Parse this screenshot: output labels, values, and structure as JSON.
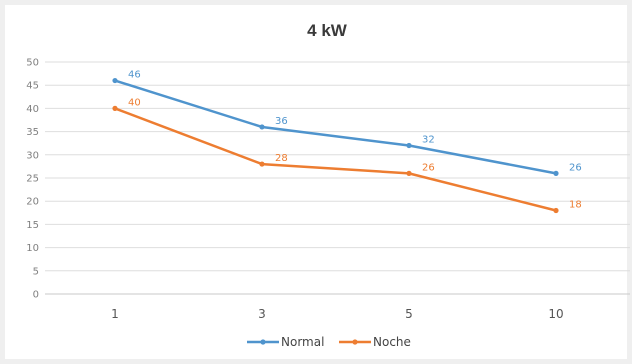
{
  "chart_data": {
    "type": "line",
    "title": "4 kW",
    "xlabel": "",
    "ylabel": "",
    "categories": [
      "1",
      "3",
      "5",
      "10"
    ],
    "ylim": [
      0,
      50
    ],
    "y_ticks": [
      0,
      5,
      10,
      15,
      20,
      25,
      30,
      35,
      40,
      45,
      50
    ],
    "grid": true,
    "legend_position": "bottom",
    "series": [
      {
        "name": "Normal",
        "values": [
          46,
          36,
          32,
          26
        ],
        "color": "#4f94cd"
      },
      {
        "name": "Noche",
        "values": [
          40,
          28,
          26,
          18
        ],
        "color": "#ed7d31"
      }
    ]
  }
}
